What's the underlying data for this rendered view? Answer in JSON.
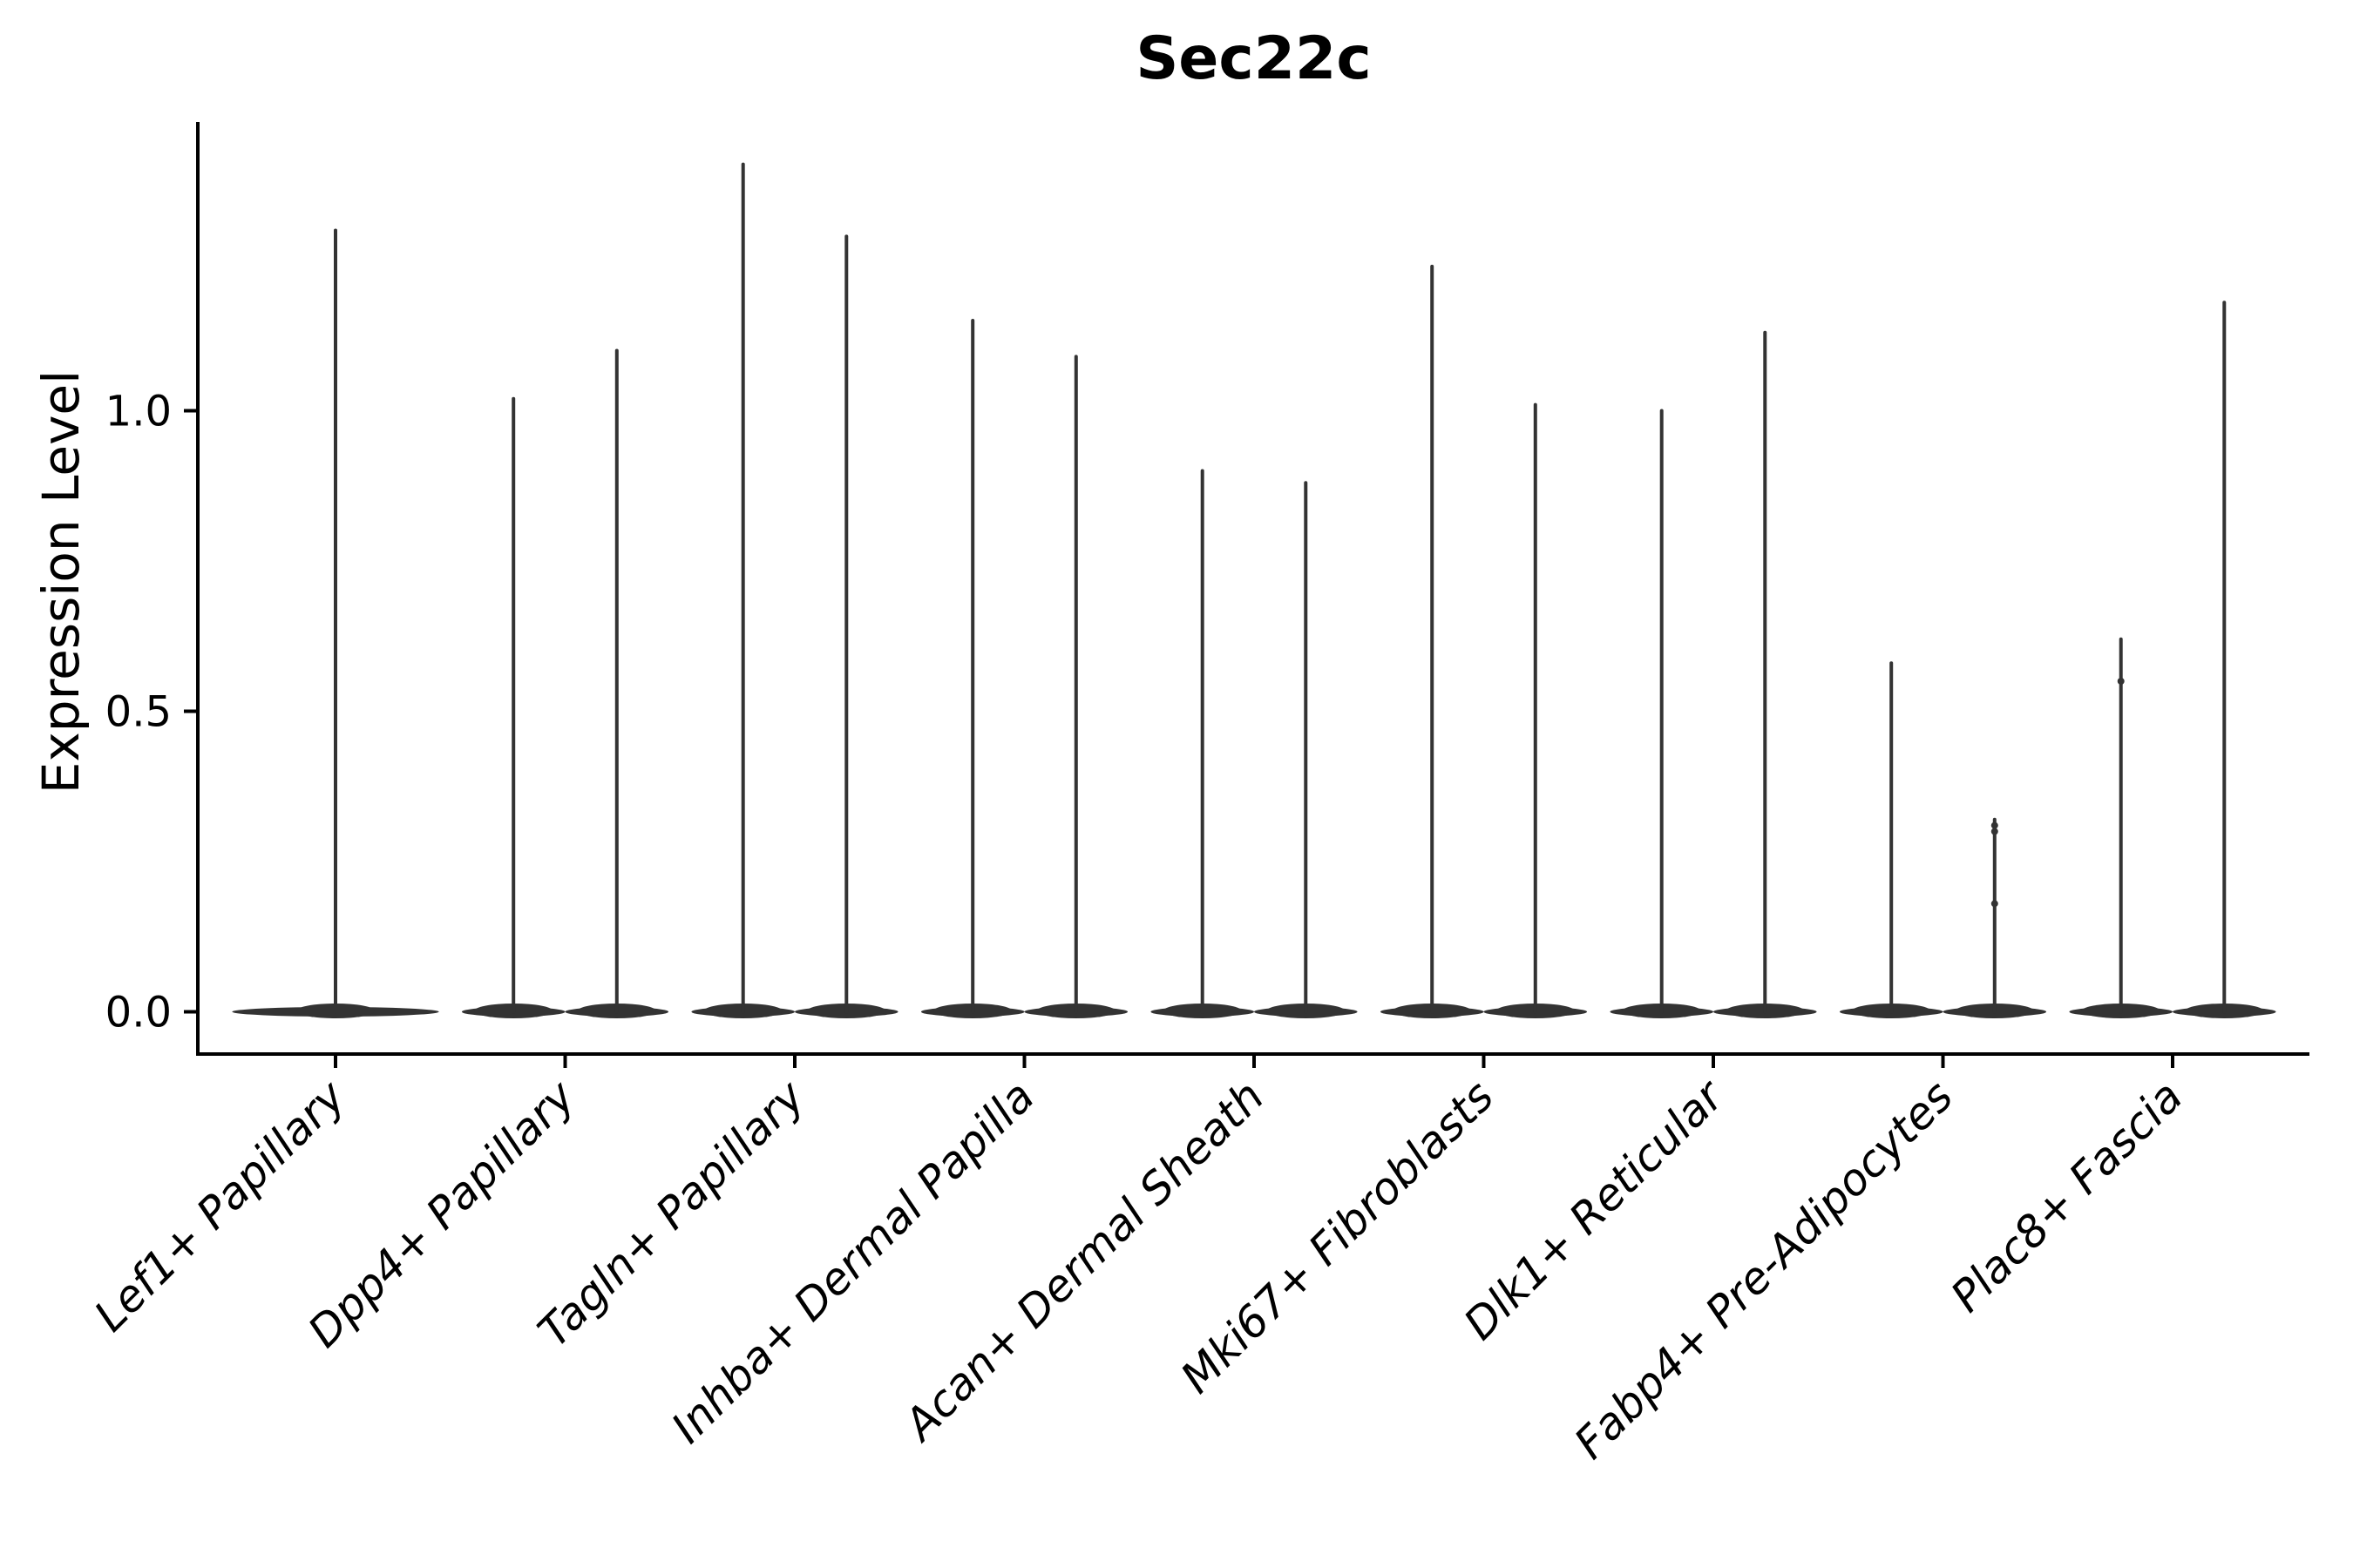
{
  "figure": {
    "background": "#ffffff",
    "ink_color": "#333333",
    "axis_color": "#000000"
  },
  "chart_data": {
    "type": "violin",
    "title": "Sec22c",
    "ylabel": "Expression Level",
    "xlabel": "",
    "legend": "none",
    "grid": false,
    "ylim": [
      -0.07,
      1.48
    ],
    "yticks": [
      {
        "label": "0.0",
        "value": 0.0
      },
      {
        "label": "0.5",
        "value": 0.5
      },
      {
        "label": "1.0",
        "value": 1.0
      }
    ],
    "categories": [
      {
        "label": "Lef1+ Papillary",
        "violins": [
          {
            "offset": 0,
            "width": 0.9,
            "max": 1.3,
            "points": []
          }
        ]
      },
      {
        "label": "Dpp4+ Papillary",
        "violins": [
          {
            "offset": -0.225,
            "width": 0.45,
            "max": 1.02,
            "points": []
          },
          {
            "offset": 0.225,
            "width": 0.45,
            "max": 1.1,
            "points": []
          }
        ]
      },
      {
        "label": "Tagln+ Papillary",
        "violins": [
          {
            "offset": -0.225,
            "width": 0.45,
            "max": 1.41,
            "points": []
          },
          {
            "offset": 0.225,
            "width": 0.45,
            "max": 1.29,
            "points": []
          }
        ]
      },
      {
        "label": "Inhba+ Dermal Papilla",
        "violins": [
          {
            "offset": -0.225,
            "width": 0.45,
            "max": 1.15,
            "points": []
          },
          {
            "offset": 0.225,
            "width": 0.45,
            "max": 1.09,
            "points": []
          }
        ]
      },
      {
        "label": "Acan+ Dermal Sheath",
        "violins": [
          {
            "offset": -0.225,
            "width": 0.45,
            "max": 0.9,
            "points": []
          },
          {
            "offset": 0.225,
            "width": 0.45,
            "max": 0.88,
            "points": []
          }
        ]
      },
      {
        "label": "Mki67+ Fibroblasts",
        "violins": [
          {
            "offset": -0.225,
            "width": 0.45,
            "max": 1.24,
            "points": []
          },
          {
            "offset": 0.225,
            "width": 0.45,
            "max": 1.01,
            "points": []
          }
        ]
      },
      {
        "label": "Dlk1+ Reticular",
        "violins": [
          {
            "offset": -0.225,
            "width": 0.45,
            "max": 1.0,
            "points": []
          },
          {
            "offset": 0.225,
            "width": 0.45,
            "max": 1.13,
            "points": []
          }
        ]
      },
      {
        "label": "Fabp4+ Pre-Adipocytes",
        "violins": [
          {
            "offset": -0.225,
            "width": 0.45,
            "max": 0.58,
            "points": []
          },
          {
            "offset": 0.225,
            "width": 0.45,
            "max": 0.32,
            "points": [
              0.31,
              0.3,
              0.18
            ]
          }
        ]
      },
      {
        "label": "Plac8+ Fascia",
        "violins": [
          {
            "offset": -0.225,
            "width": 0.45,
            "max": 0.62,
            "points": [
              0.55
            ]
          },
          {
            "offset": 0.225,
            "width": 0.45,
            "max": 1.18,
            "points": []
          }
        ]
      }
    ]
  }
}
